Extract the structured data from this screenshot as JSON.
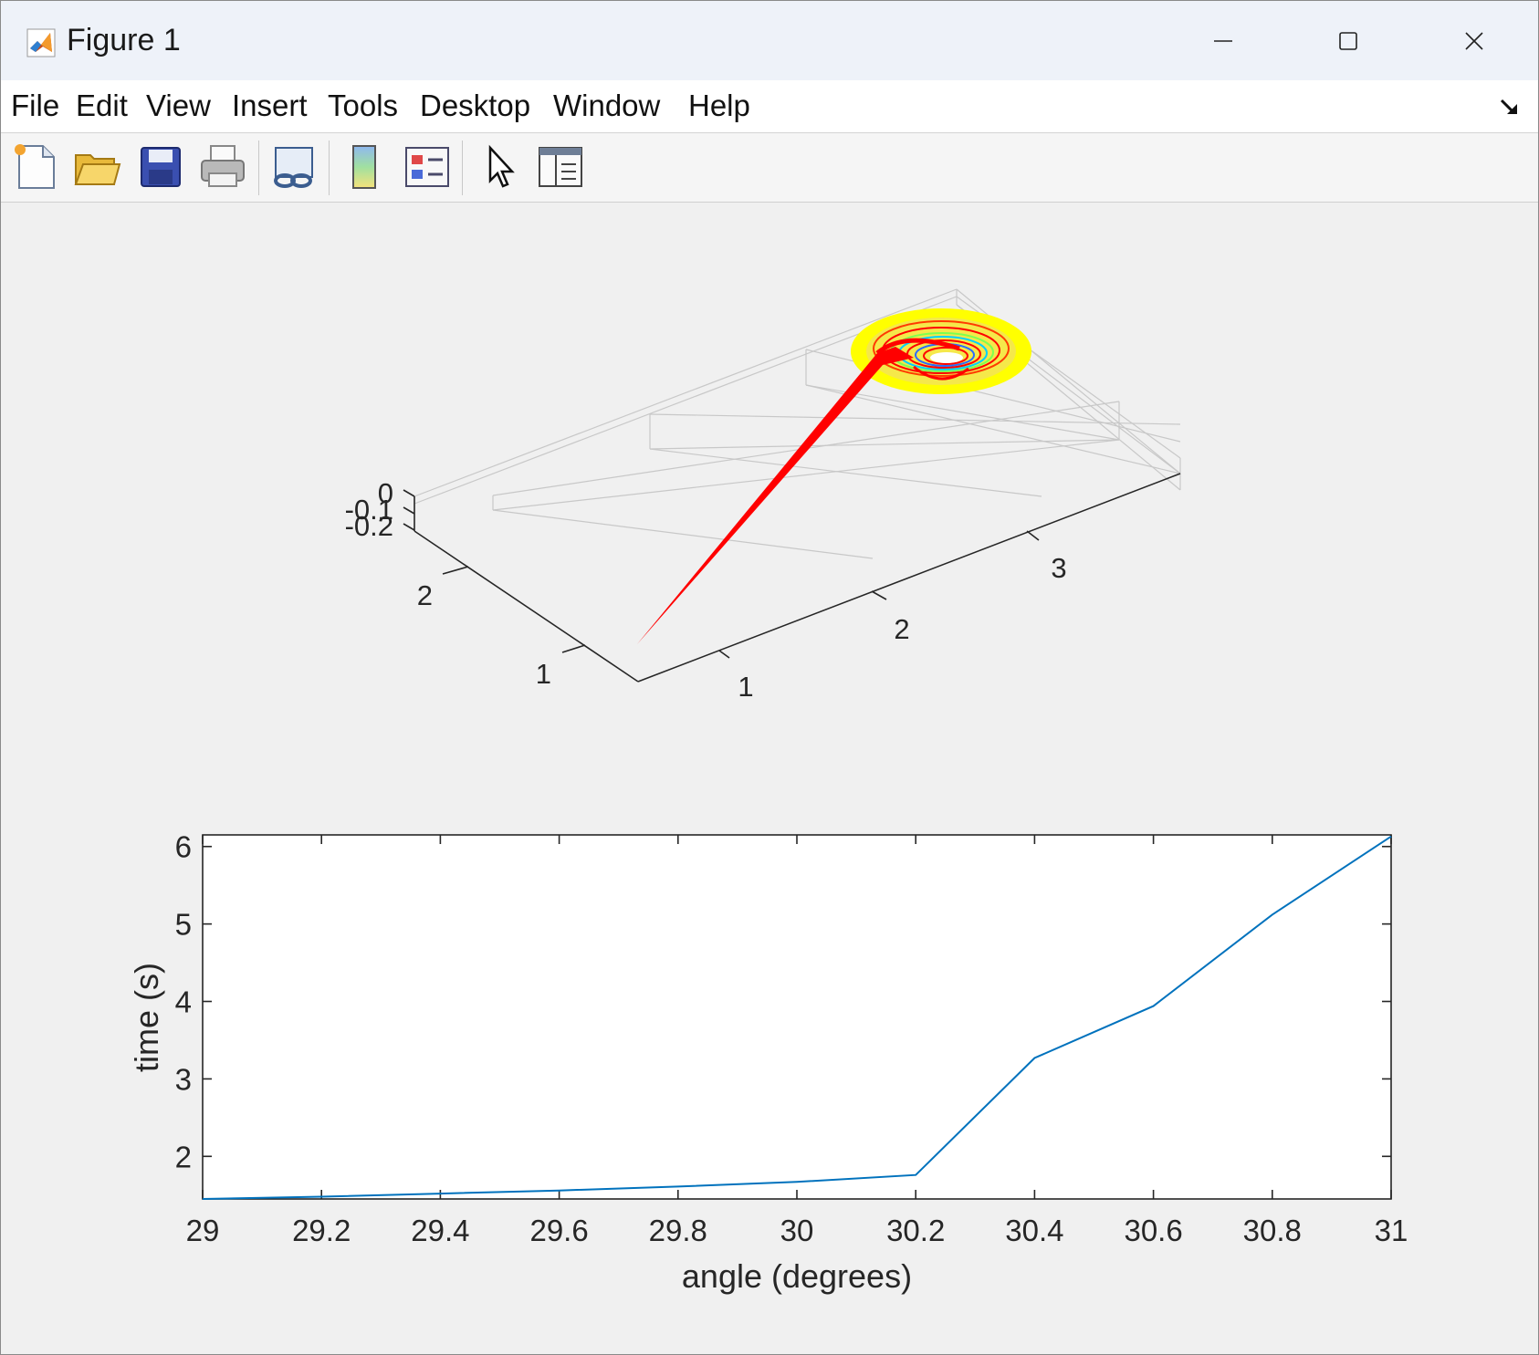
{
  "window": {
    "title": "Figure 1",
    "controls": {
      "minimize": "minimize-icon",
      "maximize": "maximize-icon",
      "close": "close-icon"
    }
  },
  "menu": {
    "items": [
      "File",
      "Edit",
      "View",
      "Insert",
      "Tools",
      "Desktop",
      "Window",
      "Help"
    ]
  },
  "toolbar": {
    "buttons": [
      "new-figure-icon",
      "open-file-icon",
      "save-icon",
      "print-icon",
      "link-plot-icon",
      "colorbar-icon",
      "legend-icon",
      "pointer-icon",
      "property-inspector-icon"
    ]
  },
  "colors": {
    "line_series": "#0072bd",
    "trajectory": "#ff0000",
    "funnel_rim": "#ffff00"
  },
  "chart_data": [
    {
      "type": "surface3d",
      "title": "",
      "xlabel": "",
      "ylabel": "",
      "zlabel": "",
      "x_ticks": [
        "1",
        "2",
        "3"
      ],
      "y_ticks": [
        "1",
        "2"
      ],
      "z_ticks": [
        "0",
        "-0.1",
        "-0.2"
      ],
      "colormap_visible": [
        "red",
        "yellow",
        "green",
        "cyan",
        "blue"
      ],
      "grid": true
    },
    {
      "type": "line",
      "title": "",
      "xlabel": "angle (degrees)",
      "ylabel": "time (s)",
      "xlim": [
        29,
        31
      ],
      "ylim": [
        1.45,
        6.15
      ],
      "x_ticks": [
        "29",
        "29.2",
        "29.4",
        "29.6",
        "29.8",
        "30",
        "30.2",
        "30.4",
        "30.6",
        "30.8",
        "31"
      ],
      "y_ticks": [
        "2",
        "3",
        "4",
        "5",
        "6"
      ],
      "grid": false,
      "x": [
        29,
        29.2,
        29.4,
        29.6,
        29.8,
        30,
        30.2,
        30.4,
        30.6,
        30.8,
        31
      ],
      "y": [
        1.45,
        1.48,
        1.52,
        1.56,
        1.61,
        1.67,
        1.76,
        3.27,
        3.94,
        5.12,
        6.13
      ]
    }
  ]
}
